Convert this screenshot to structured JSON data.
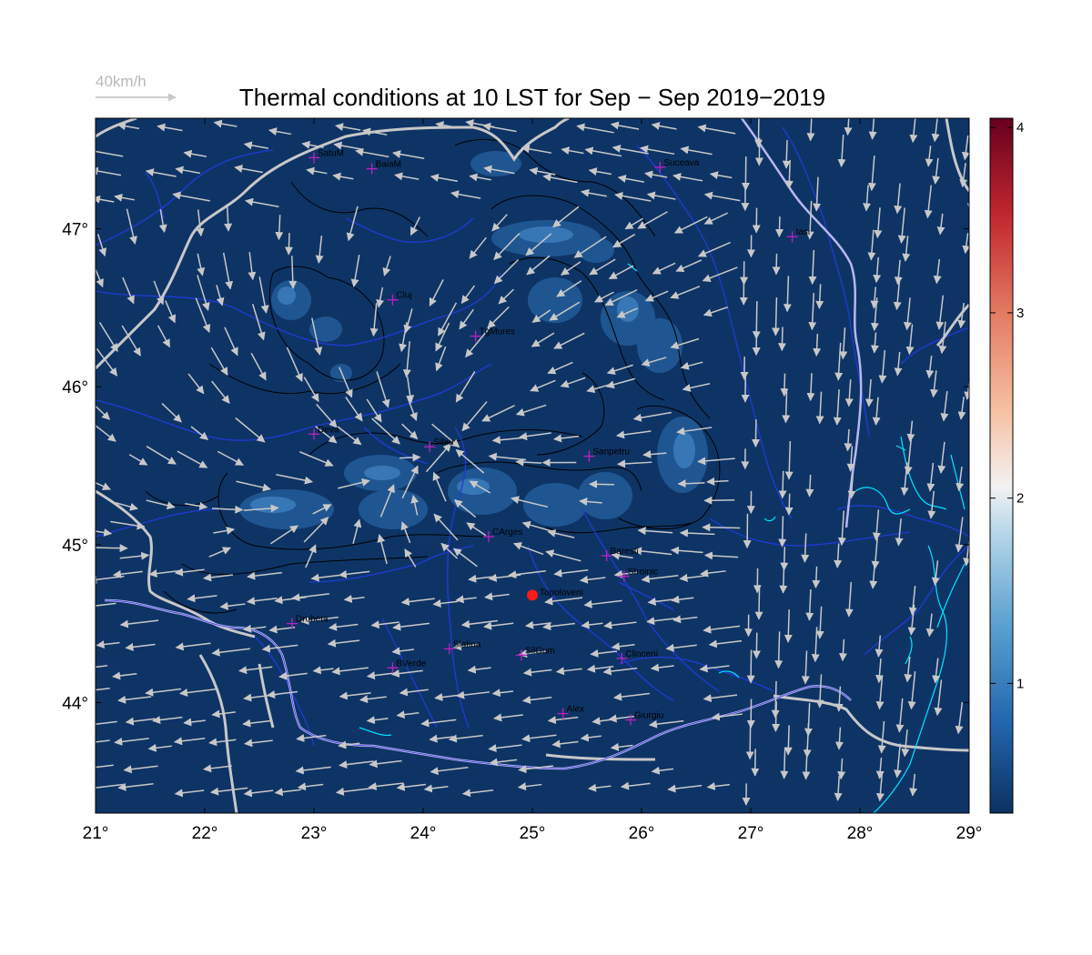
{
  "title": "Thermal conditions at 10 LST for Sep − Sep  2019−2019",
  "wind_legend": {
    "label": "40km/h",
    "color": "#b8b8b8"
  },
  "colors": {
    "background": "#0e3466",
    "highland": "#2c6aa8",
    "highland_peak": "#4f8fc6",
    "river": "#1f3bd6",
    "border": "#c8c8c8",
    "danube": "#b8b8f0",
    "lake": "#00e5ff",
    "contour": "#000000",
    "arrow": "#c8c8c8",
    "city_marker": "#c020c0",
    "highlight_city": "#ff1a1a"
  },
  "axes": {
    "lon_range": [
      21,
      29
    ],
    "lat_range": [
      43.3,
      47.7
    ],
    "lon_ticks": [
      "21°",
      "22°",
      "23°",
      "24°",
      "25°",
      "26°",
      "27°",
      "28°",
      "29°"
    ],
    "lat_ticks": [
      "44°",
      "45°",
      "46°",
      "47°"
    ]
  },
  "colorbar": {
    "ticks": [
      "1",
      "2",
      "3",
      "4"
    ],
    "range": [
      0.3,
      4.05
    ]
  },
  "cities": [
    {
      "name": "SatuM",
      "lon": 23.0,
      "lat": 47.45
    },
    {
      "name": "BaiaM",
      "lon": 23.53,
      "lat": 47.38
    },
    {
      "name": "Suceava",
      "lon": 26.17,
      "lat": 47.39
    },
    {
      "name": "Iasi",
      "lon": 27.38,
      "lat": 46.95
    },
    {
      "name": "Cluj",
      "lon": 23.72,
      "lat": 46.55
    },
    {
      "name": "TgMures",
      "lon": 24.48,
      "lat": 46.32
    },
    {
      "name": "Deva",
      "lon": 23.0,
      "lat": 45.7
    },
    {
      "name": "Sibiu",
      "lon": 24.06,
      "lat": 45.62
    },
    {
      "name": "Sanpetru",
      "lon": 25.52,
      "lat": 45.56
    },
    {
      "name": "CArges",
      "lon": 24.6,
      "lat": 45.05
    },
    {
      "name": "Baresti",
      "lon": 25.68,
      "lat": 44.93
    },
    {
      "name": "Stroinic",
      "lon": 25.84,
      "lat": 44.8
    },
    {
      "name": "Drobeta",
      "lon": 22.8,
      "lat": 44.5
    },
    {
      "name": "Slatina",
      "lon": 24.24,
      "lat": 44.34
    },
    {
      "name": "SilGum",
      "lon": 24.9,
      "lat": 44.3
    },
    {
      "name": "Clinceni",
      "lon": 25.82,
      "lat": 44.28
    },
    {
      "name": "BVerde",
      "lon": 23.72,
      "lat": 44.22
    },
    {
      "name": "Alex",
      "lon": 25.28,
      "lat": 43.93
    },
    {
      "name": "Giurgiu",
      "lon": 25.9,
      "lat": 43.89
    }
  ],
  "highlight_city": {
    "name": "Topoloveni",
    "lon": 25.0,
    "lat": 44.68
  }
}
